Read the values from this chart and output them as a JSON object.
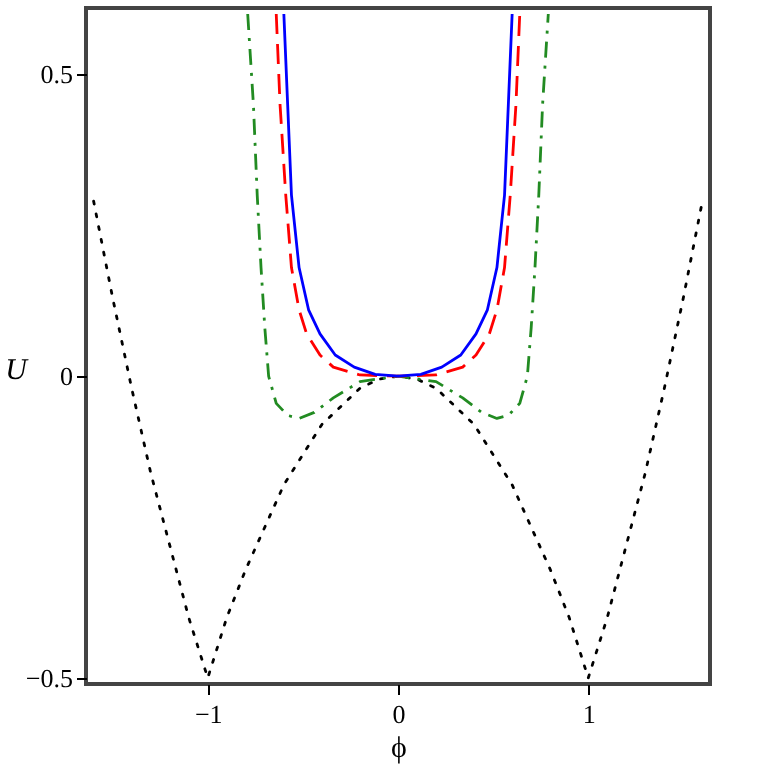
{
  "chart_data": {
    "type": "line",
    "xlabel": "ϕ",
    "ylabel": "U",
    "xlim": [
      -1.64,
      1.64
    ],
    "ylim": [
      -0.51,
      0.61
    ],
    "xticks": [
      -1,
      0,
      1
    ],
    "yticks": [
      -0.5,
      0,
      0.5
    ],
    "marker": "none",
    "series": [
      {
        "color": "#000000",
        "line_style": "dotted",
        "x": [
          -1.6,
          -1.5,
          -1.4,
          -1.3,
          -1.2,
          -1.1,
          -1,
          -0.9,
          -0.8,
          -0.7,
          -0.6,
          -0.5,
          -0.4,
          -0.3,
          -0.2,
          -0.1,
          0,
          0.1,
          0.2,
          0.3,
          0.4,
          0.5,
          0.6,
          0.7,
          0.8,
          0.9,
          1,
          1.1,
          1.2,
          1.3,
          1.4,
          1.5,
          1.6
        ],
        "values": [
          0.29,
          0.13,
          -0.02,
          -0.16,
          -0.28,
          -0.4,
          -0.5,
          -0.4,
          -0.32,
          -0.25,
          -0.18,
          -0.13,
          -0.08,
          -0.05,
          -0.02,
          -0.005,
          0,
          -0.005,
          -0.02,
          -0.05,
          -0.08,
          -0.13,
          -0.18,
          -0.25,
          -0.32,
          -0.4,
          -0.5,
          -0.4,
          -0.28,
          -0.16,
          -0.02,
          0.13,
          0.29
        ]
      },
      {
        "color": "#228b22",
        "line_style": "dashdot",
        "x": [
          -0.79,
          -0.76,
          -0.74,
          -0.72,
          -0.7,
          -0.68,
          -0.64,
          -0.58,
          -0.52,
          -0.44,
          -0.34,
          -0.2,
          0,
          0.2,
          0.34,
          0.44,
          0.52,
          0.58,
          0.64,
          0.68,
          0.7,
          0.72,
          0.74,
          0.76,
          0.79
        ],
        "values": [
          0.6,
          0.45,
          0.3,
          0.18,
          0.08,
          0,
          -0.045,
          -0.065,
          -0.07,
          -0.06,
          -0.036,
          -0.009,
          0,
          -0.009,
          -0.036,
          -0.06,
          -0.07,
          -0.065,
          -0.045,
          0,
          0.08,
          0.18,
          0.3,
          0.45,
          0.6
        ]
      },
      {
        "color": "#ff0000",
        "line_style": "dashed",
        "x": [
          -0.64,
          -0.62,
          -0.59,
          -0.56,
          -0.52,
          -0.48,
          -0.41,
          -0.34,
          -0.2,
          0,
          0.2,
          0.34,
          0.41,
          0.48,
          0.52,
          0.56,
          0.59,
          0.62,
          0.64
        ],
        "values": [
          0.6,
          0.45,
          0.3,
          0.18,
          0.11,
          0.07,
          0.035,
          0.015,
          0.002,
          0,
          0.002,
          0.015,
          0.035,
          0.07,
          0.11,
          0.18,
          0.3,
          0.45,
          0.6
        ]
      },
      {
        "color": "#0000ff",
        "line_style": "solid",
        "x": [
          -0.6,
          -0.58,
          -0.56,
          -0.52,
          -0.47,
          -0.41,
          -0.33,
          -0.23,
          -0.12,
          0,
          0.12,
          0.23,
          0.33,
          0.41,
          0.47,
          0.52,
          0.56,
          0.58,
          0.6
        ],
        "values": [
          0.6,
          0.45,
          0.3,
          0.18,
          0.11,
          0.07,
          0.035,
          0.015,
          0.003,
          0,
          0.003,
          0.015,
          0.035,
          0.07,
          0.11,
          0.18,
          0.3,
          0.45,
          0.6
        ]
      }
    ]
  }
}
